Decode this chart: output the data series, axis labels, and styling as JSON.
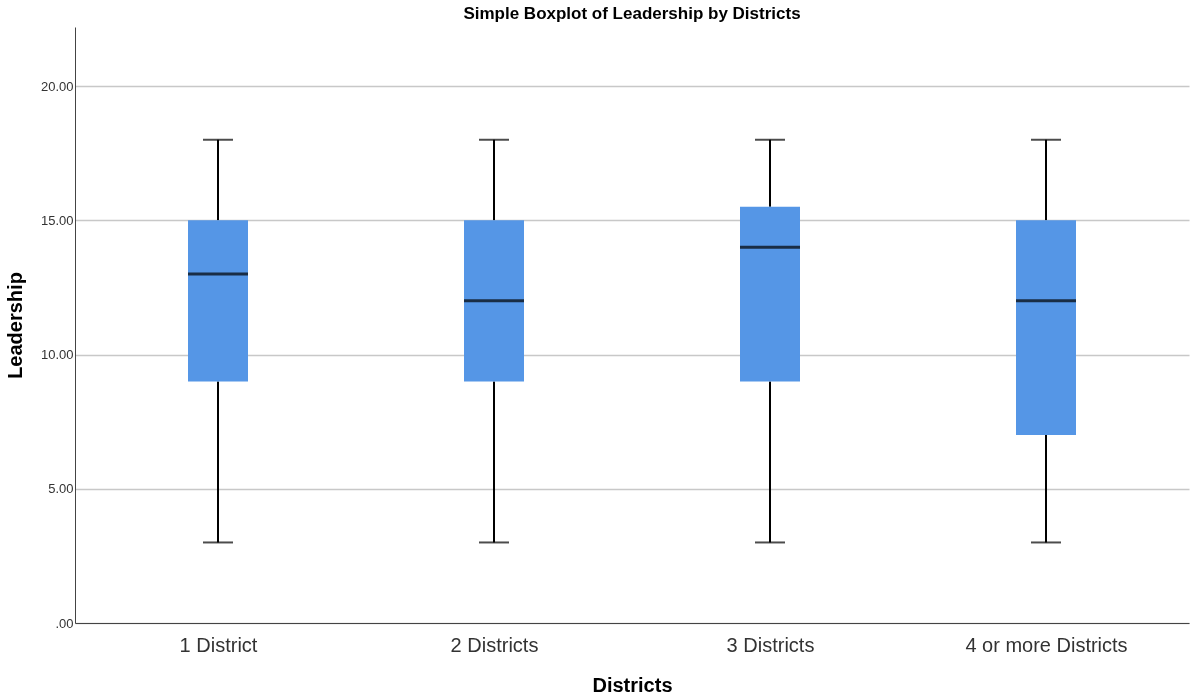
{
  "chart_data": {
    "type": "box",
    "title": "Simple Boxplot of Leadership by Districts",
    "xlabel": "Districts",
    "ylabel": "Leadership",
    "categories": [
      "1 District",
      "2 Districts",
      "3 Districts",
      "4 or more Districts"
    ],
    "series": [
      {
        "color": "#5596e6",
        "boxes": [
          {
            "low": 3,
            "q1": 9,
            "median": 13,
            "q3": 15,
            "high": 18
          },
          {
            "low": 3,
            "q1": 9,
            "median": 12,
            "q3": 15,
            "high": 18
          },
          {
            "low": 3,
            "q1": 9,
            "median": 14,
            "q3": 15.5,
            "high": 18
          },
          {
            "low": 3,
            "q1": 7,
            "median": 12,
            "q3": 15,
            "high": 18
          }
        ]
      }
    ],
    "ylim": [
      0,
      22.2
    ],
    "yticks": [
      {
        "value": 0,
        "label": ".00"
      },
      {
        "value": 5,
        "label": "5.00"
      },
      {
        "value": 10,
        "label": "10.00"
      },
      {
        "value": 15,
        "label": "15.00"
      },
      {
        "value": 20,
        "label": "20.00"
      }
    ],
    "grid": "y"
  }
}
